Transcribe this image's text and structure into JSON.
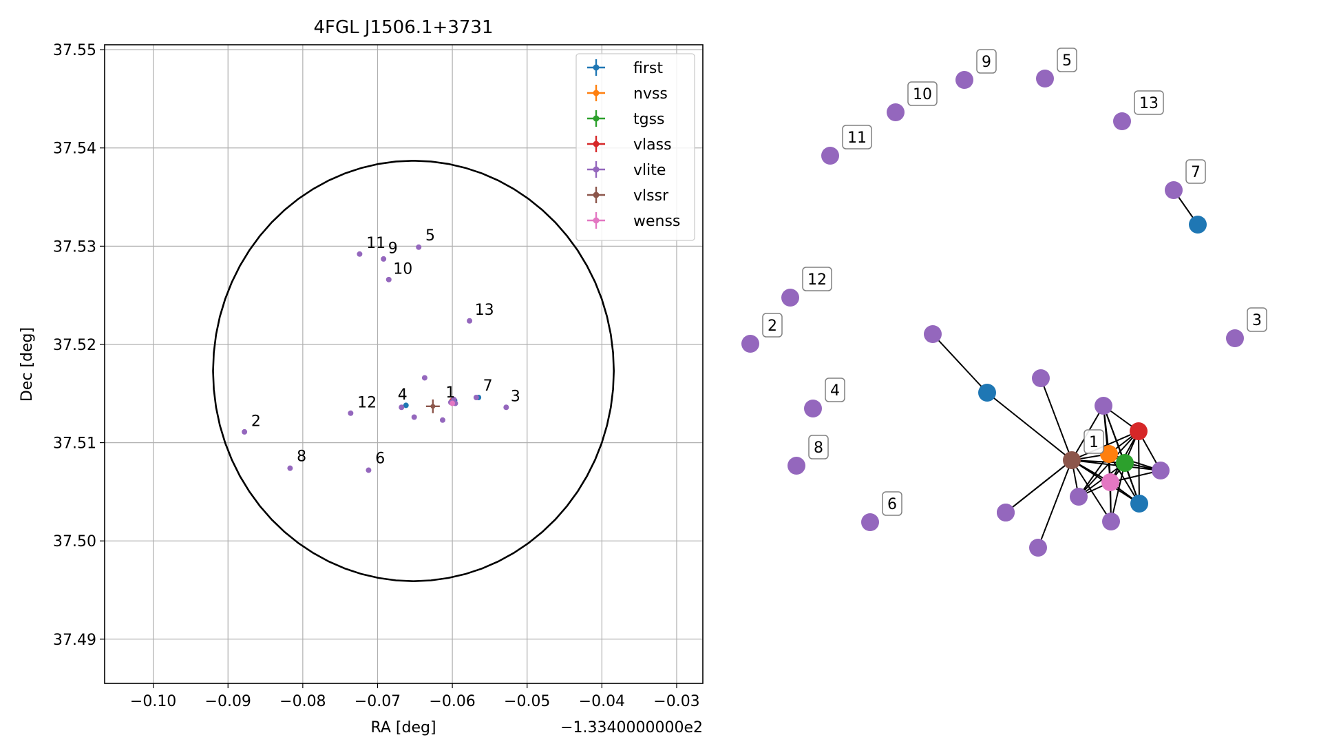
{
  "chart_data": [
    {
      "type": "scatter",
      "title": "4FGL J1506.1+3731",
      "xlabel": "RA [deg]",
      "ylabel": "Dec [deg]",
      "x_offset_label": "−1.3340000000e2",
      "xlim": [
        -0.1065,
        -0.0265
      ],
      "ylim": [
        37.4855,
        37.5505
      ],
      "x_ticks": [
        -0.1,
        -0.09,
        -0.08,
        -0.07,
        -0.06,
        -0.05,
        -0.04,
        -0.03
      ],
      "x_tick_labels": [
        "−0.10",
        "−0.09",
        "−0.08",
        "−0.07",
        "−0.06",
        "−0.05",
        "−0.04",
        "−0.03"
      ],
      "y_ticks": [
        37.49,
        37.5,
        37.51,
        37.52,
        37.53,
        37.54,
        37.55
      ],
      "y_tick_labels": [
        "37.49",
        "37.50",
        "37.51",
        "37.52",
        "37.53",
        "37.54",
        "37.55"
      ],
      "grid": true,
      "legend_placement": "top-right",
      "circle": {
        "center": [
          -0.0652,
          37.5173
        ],
        "ra_radius": 0.0268,
        "dec_radius": 0.0214
      },
      "series": [
        {
          "name": "first",
          "color": "#1f77b4",
          "points": [
            [
              -0.0662,
              37.5138
            ],
            [
              -0.0565,
              37.5146
            ],
            [
              -0.0597,
              37.5143
            ]
          ]
        },
        {
          "name": "nvss",
          "color": "#ff7f0e",
          "points": [
            [
              -0.0601,
              37.5142
            ]
          ]
        },
        {
          "name": "tgss",
          "color": "#2ca02c",
          "points": [
            [
              -0.0599,
              37.5141
            ]
          ]
        },
        {
          "name": "vlass",
          "color": "#d62728",
          "points": [
            [
              -0.06,
              37.5143
            ]
          ]
        },
        {
          "name": "vlite",
          "color": "#9467bd",
          "points": [
            [
              -0.0878,
              37.5111
            ],
            [
              -0.0817,
              37.5074
            ],
            [
              -0.0712,
              37.5072
            ],
            [
              -0.0736,
              37.513
            ],
            [
              -0.0724,
              37.5292
            ],
            [
              -0.0692,
              37.5287
            ],
            [
              -0.0685,
              37.5266
            ],
            [
              -0.0645,
              37.5299
            ],
            [
              -0.0577,
              37.5224
            ],
            [
              -0.0568,
              37.5146
            ],
            [
              -0.0528,
              37.5136
            ],
            [
              -0.0668,
              37.5136
            ],
            [
              -0.0637,
              37.5166
            ],
            [
              -0.0651,
              37.5126
            ],
            [
              -0.0613,
              37.5123
            ],
            [
              -0.0602,
              37.5141
            ],
            [
              -0.0598,
              37.5144
            ],
            [
              -0.0596,
              37.514
            ]
          ]
        },
        {
          "name": "vlssr",
          "color": "#8c564b",
          "points": [
            [
              -0.0626,
              37.5137
            ]
          ]
        },
        {
          "name": "wenss",
          "color": "#e377c2",
          "points": [
            [
              -0.06,
              37.514
            ]
          ]
        }
      ],
      "labels": [
        {
          "text": "1",
          "x": -0.0609,
          "y": 37.5146
        },
        {
          "text": "2",
          "x": -0.0869,
          "y": 37.5117
        },
        {
          "text": "3",
          "x": -0.0522,
          "y": 37.5142
        },
        {
          "text": "4",
          "x": -0.0673,
          "y": 37.5144
        },
        {
          "text": "5",
          "x": -0.0636,
          "y": 37.5306
        },
        {
          "text": "6",
          "x": -0.0703,
          "y": 37.5079
        },
        {
          "text": "7",
          "x": -0.0559,
          "y": 37.5153
        },
        {
          "text": "8",
          "x": -0.0808,
          "y": 37.5081
        },
        {
          "text": "9",
          "x": -0.0686,
          "y": 37.5293
        },
        {
          "text": "10",
          "x": -0.0679,
          "y": 37.5272
        },
        {
          "text": "11",
          "x": -0.0715,
          "y": 37.5298
        },
        {
          "text": "12",
          "x": -0.0727,
          "y": 37.5136
        },
        {
          "text": "13",
          "x": -0.057,
          "y": 37.523
        }
      ]
    },
    {
      "type": "network",
      "nodes": [
        {
          "id": "n1",
          "color": "#8c564b",
          "label": "1"
        },
        {
          "id": "n2",
          "color": "#9467bd",
          "label": "2"
        },
        {
          "id": "n3",
          "color": "#9467bd",
          "label": "3"
        },
        {
          "id": "n4",
          "color": "#9467bd",
          "label": "4"
        },
        {
          "id": "n5",
          "color": "#9467bd",
          "label": "5"
        },
        {
          "id": "n6",
          "color": "#9467bd",
          "label": "6"
        },
        {
          "id": "n7",
          "color": "#9467bd",
          "label": "7"
        },
        {
          "id": "n8",
          "color": "#9467bd",
          "label": "8"
        },
        {
          "id": "n9",
          "color": "#9467bd",
          "label": "9"
        },
        {
          "id": "n10",
          "color": "#9467bd",
          "label": "10"
        },
        {
          "id": "n11",
          "color": "#9467bd",
          "label": "11"
        },
        {
          "id": "n12",
          "color": "#9467bd",
          "label": "12"
        },
        {
          "id": "n13",
          "color": "#9467bd",
          "label": "13"
        },
        {
          "id": "f1",
          "color": "#1f77b4",
          "label": ""
        },
        {
          "id": "f2",
          "color": "#1f77b4",
          "label": ""
        },
        {
          "id": "f3",
          "color": "#1f77b4",
          "label": ""
        },
        {
          "id": "nv",
          "color": "#ff7f0e",
          "label": ""
        },
        {
          "id": "tg",
          "color": "#2ca02c",
          "label": ""
        },
        {
          "id": "vl",
          "color": "#d62728",
          "label": ""
        },
        {
          "id": "we",
          "color": "#e377c2",
          "label": ""
        },
        {
          "id": "v1",
          "color": "#9467bd",
          "label": ""
        },
        {
          "id": "v2",
          "color": "#9467bd",
          "label": ""
        },
        {
          "id": "v3",
          "color": "#9467bd",
          "label": ""
        },
        {
          "id": "v4",
          "color": "#9467bd",
          "label": ""
        },
        {
          "id": "v5",
          "color": "#9467bd",
          "label": ""
        },
        {
          "id": "v6",
          "color": "#9467bd",
          "label": ""
        },
        {
          "id": "v7",
          "color": "#9467bd",
          "label": ""
        },
        {
          "id": "v8",
          "color": "#9467bd",
          "label": ""
        },
        {
          "id": "v9",
          "color": "#9467bd",
          "label": ""
        }
      ],
      "edges": [
        [
          "n7",
          "f3"
        ],
        [
          "v1",
          "f1"
        ],
        [
          "f1",
          "n1"
        ],
        [
          "v2",
          "n1"
        ],
        [
          "v3",
          "n1"
        ],
        [
          "v3",
          "nv"
        ],
        [
          "v3",
          "tg"
        ],
        [
          "v3",
          "vl"
        ],
        [
          "v3",
          "we"
        ],
        [
          "v3",
          "f2"
        ],
        [
          "n1",
          "nv"
        ],
        [
          "n1",
          "tg"
        ],
        [
          "n1",
          "vl"
        ],
        [
          "n1",
          "we"
        ],
        [
          "n1",
          "f2"
        ],
        [
          "n1",
          "v4"
        ],
        [
          "n1",
          "v5"
        ],
        [
          "n1",
          "v6"
        ],
        [
          "n1",
          "v7"
        ],
        [
          "n1",
          "v8"
        ],
        [
          "n1",
          "v9"
        ],
        [
          "nv",
          "tg"
        ],
        [
          "nv",
          "vl"
        ],
        [
          "nv",
          "we"
        ],
        [
          "nv",
          "f2"
        ],
        [
          "nv",
          "v4"
        ],
        [
          "nv",
          "v7"
        ],
        [
          "nv",
          "v9"
        ],
        [
          "tg",
          "vl"
        ],
        [
          "tg",
          "we"
        ],
        [
          "tg",
          "f2"
        ],
        [
          "tg",
          "v4"
        ],
        [
          "tg",
          "v7"
        ],
        [
          "tg",
          "v9"
        ],
        [
          "vl",
          "we"
        ],
        [
          "vl",
          "f2"
        ],
        [
          "vl",
          "v4"
        ],
        [
          "vl",
          "v7"
        ],
        [
          "we",
          "f2"
        ],
        [
          "we",
          "v4"
        ],
        [
          "we",
          "v7"
        ],
        [
          "we",
          "v9"
        ]
      ]
    }
  ]
}
